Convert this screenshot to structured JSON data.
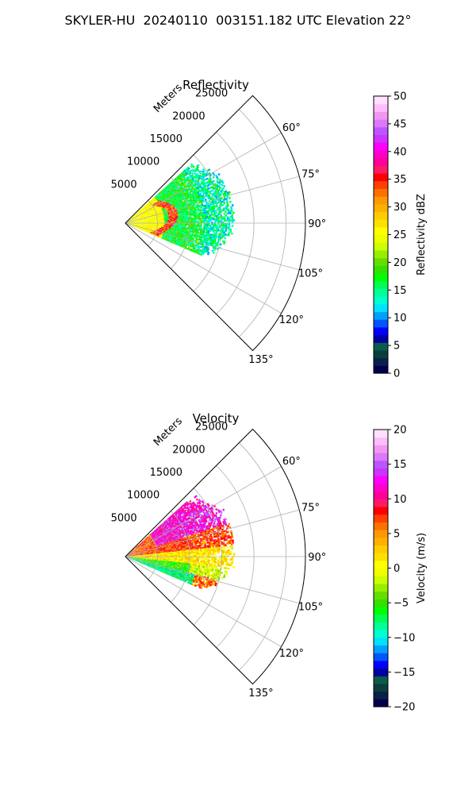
{
  "title": "SKYLER-HU  20240110  003151.182 UTC Elevation 22°",
  "chart_data": [
    {
      "type": "heatmap",
      "subtype": "polar-sector (PPI)",
      "title": "Reflectivity",
      "radial_axis_label": "Meters",
      "radial_ticks": [
        "5000",
        "10000",
        "15000",
        "20000",
        "25000"
      ],
      "radial_range": [
        0,
        28000
      ],
      "angle_ticks": [
        "60°",
        "75°",
        "90°",
        "105°",
        "120°",
        "135°"
      ],
      "angle_range_deg": [
        45,
        135
      ],
      "grid": true,
      "colorbar": {
        "label": "Reflectivity dBZ",
        "range": [
          0,
          50
        ],
        "ticks": [
          "0",
          "5",
          "10",
          "15",
          "20",
          "25",
          "30",
          "35",
          "40",
          "45",
          "50"
        ],
        "colors": [
          "#00004a",
          "#0a1f4a",
          "#0b3d3d",
          "#0a5b4a",
          "#0000a0",
          "#0000ff",
          "#0055ff",
          "#00a0ff",
          "#00e0ff",
          "#00ffd0",
          "#00ff99",
          "#00ff55",
          "#00ff00",
          "#33e000",
          "#66dd00",
          "#99ee00",
          "#ccff00",
          "#eeff00",
          "#ffff00",
          "#ffe000",
          "#ffcc00",
          "#ffb000",
          "#ff9900",
          "#ff7000",
          "#ff4000",
          "#ff0000",
          "#ff1a66",
          "#ff0099",
          "#ff00cc",
          "#ff00ff",
          "#cc33ff",
          "#bb55ff",
          "#dd77ff",
          "#ee99ee",
          "#ffbbff",
          "#ffe0ff"
        ]
      },
      "field_summary": "Echoes confined to the first ~17000 m, spanning roughly 60°–110°; mostly 15–25 dBZ with 30–40 dBZ arcs near 5000–8000 m"
    },
    {
      "type": "heatmap",
      "subtype": "polar-sector (PPI)",
      "title": "Velocity",
      "radial_axis_label": "Meters",
      "radial_ticks": [
        "5000",
        "10000",
        "15000",
        "20000",
        "25000"
      ],
      "radial_range": [
        0,
        28000
      ],
      "angle_ticks": [
        "60°",
        "75°",
        "90°",
        "105°",
        "120°",
        "135°"
      ],
      "angle_range_deg": [
        45,
        135
      ],
      "grid": true,
      "colorbar": {
        "label": "Velocity (m/s)",
        "range": [
          -20,
          20
        ],
        "ticks": [
          "−20",
          "−15",
          "−10",
          "−5",
          "0",
          "5",
          "10",
          "15",
          "20"
        ],
        "colors": [
          "#00004a",
          "#0a1f4a",
          "#0b3d3d",
          "#0a5b4a",
          "#0000a0",
          "#0000ff",
          "#0055ff",
          "#00a0ff",
          "#00e0ff",
          "#00ffd0",
          "#00ff99",
          "#00ff55",
          "#00ff00",
          "#33e000",
          "#66dd00",
          "#99ee00",
          "#ccff00",
          "#eeff00",
          "#ffff00",
          "#ffe000",
          "#ffcc00",
          "#ffb000",
          "#ff9900",
          "#ff7000",
          "#ff4000",
          "#ff0000",
          "#ff1a66",
          "#ff0099",
          "#ff00cc",
          "#ff00ff",
          "#cc33ff",
          "#bb55ff",
          "#dd77ff",
          "#ee99ee",
          "#ffbbff",
          "#ffe0ff"
        ]
      },
      "field_summary": "Echoes within ~17000 m; +10 to +20 m/s at upper azimuths (60°–75°), near 0 m/s around 90°, −5 to −15 m/s bands at 100°–110°"
    }
  ]
}
